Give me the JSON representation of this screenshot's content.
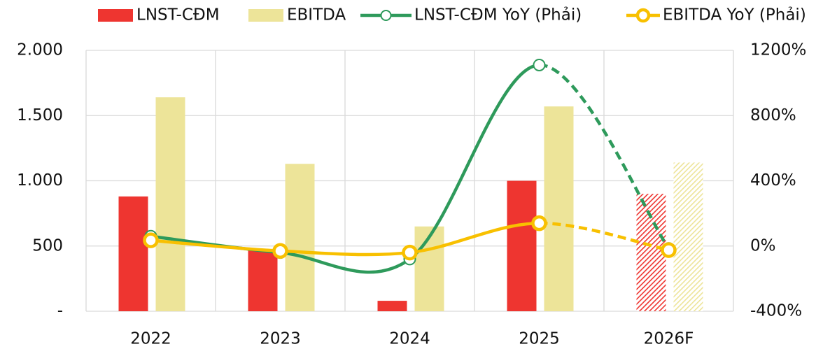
{
  "chart_data": {
    "type": "bar_line",
    "categories": [
      "2022",
      "2023",
      "2024",
      "2025",
      "2026F"
    ],
    "projected": [
      false,
      false,
      false,
      false,
      true
    ],
    "series": [
      {
        "name": "LNST-CĐM",
        "type": "bar",
        "color": "#ee3530",
        "values": [
          880,
          470,
          80,
          1000,
          900
        ]
      },
      {
        "name": "EBITDA",
        "type": "bar",
        "color": "#ede499",
        "values": [
          1640,
          1130,
          650,
          1570,
          1140
        ]
      },
      {
        "name": "LNST-CĐM YoY (Phải)",
        "type": "line",
        "axis": "y2",
        "color": "#2e9a5b",
        "values": [
          60,
          -40,
          -80,
          1110,
          -15
        ]
      },
      {
        "name": "EBITDA YoY (Phải)",
        "type": "line",
        "axis": "y2",
        "color": "#f8c000",
        "values": [
          35,
          -30,
          -40,
          140,
          -25
        ]
      }
    ],
    "ylim": [
      0,
      2000
    ],
    "yticks": [
      {
        "value": 0,
        "label": "-"
      },
      500,
      {
        "value": 1000,
        "label": "1.000"
      },
      {
        "value": 1500,
        "label": "1.500"
      },
      {
        "value": 2000,
        "label": "2.000"
      }
    ],
    "y2lim": [
      -400,
      1200
    ],
    "y2ticks": [
      {
        "value": -400,
        "label": "-400%"
      },
      {
        "value": 0,
        "label": "0%"
      },
      {
        "value": 400,
        "label": "400%"
      },
      {
        "value": 800,
        "label": "800%"
      },
      {
        "value": 1200,
        "label": "1200%"
      }
    ],
    "grid": true,
    "legend": "top"
  }
}
